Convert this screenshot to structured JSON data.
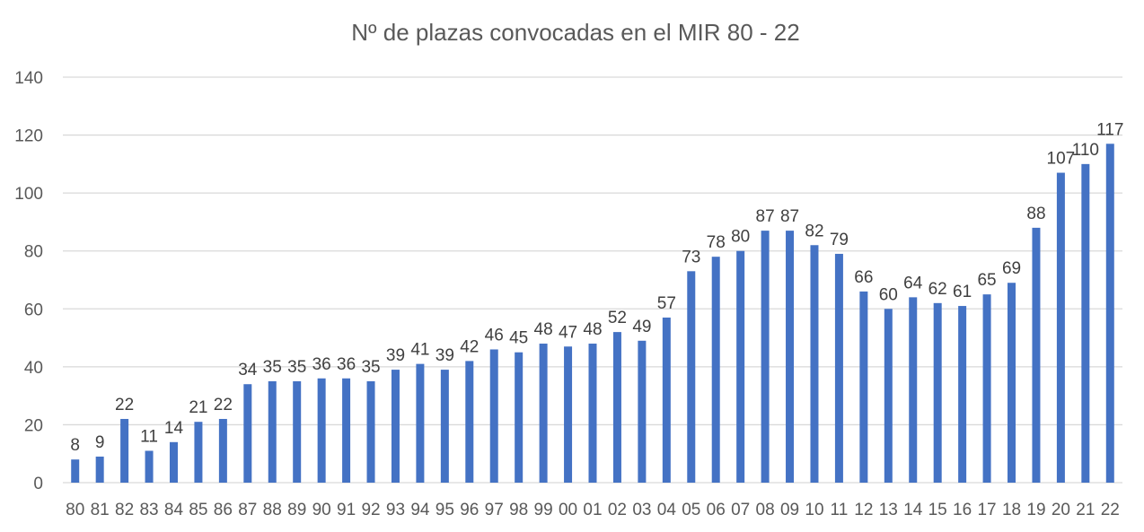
{
  "chart_data": {
    "type": "bar",
    "title": "Nº de plazas convocadas en el MIR 80 - 22",
    "xlabel": "",
    "ylabel": "",
    "categories": [
      "80",
      "81",
      "82",
      "83",
      "84",
      "85",
      "86",
      "87",
      "88",
      "89",
      "90",
      "91",
      "92",
      "93",
      "94",
      "95",
      "96",
      "97",
      "98",
      "99",
      "00",
      "01",
      "02",
      "03",
      "04",
      "05",
      "06",
      "07",
      "08",
      "09",
      "10",
      "11",
      "12",
      "13",
      "14",
      "15",
      "16",
      "17",
      "18",
      "19",
      "20",
      "21",
      "22"
    ],
    "values": [
      8,
      9,
      22,
      11,
      14,
      21,
      22,
      34,
      35,
      35,
      36,
      36,
      35,
      39,
      41,
      39,
      42,
      46,
      45,
      48,
      47,
      48,
      52,
      49,
      57,
      73,
      78,
      80,
      87,
      87,
      82,
      79,
      66,
      60,
      64,
      62,
      61,
      65,
      69,
      88,
      107,
      110,
      117
    ],
    "ylim": [
      0,
      140
    ],
    "yticks": [
      0,
      20,
      40,
      60,
      80,
      100,
      120,
      140
    ],
    "grid": true,
    "legend": "none",
    "data_labels": true,
    "colors": {
      "bar": "#4472c4",
      "grid": "#d9d9d9",
      "text": "#595959"
    }
  }
}
